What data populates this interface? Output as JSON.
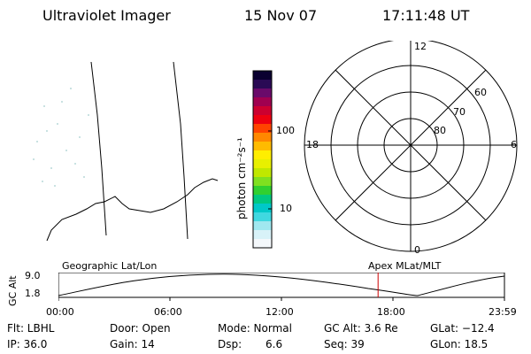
{
  "header": {
    "instrument": "Ultraviolet Imager",
    "date": "15 Nov 07",
    "time": "17:11:48 UT"
  },
  "colorbar": {
    "label": "photon cm⁻²s⁻¹",
    "ticks": [
      "100",
      "10"
    ],
    "colors": [
      "#0a0030",
      "#2a0a55",
      "#6a0a6a",
      "#a00050",
      "#cc0030",
      "#ee0010",
      "#ff4400",
      "#ff8800",
      "#ffbb00",
      "#ffee00",
      "#e8f000",
      "#c0e800",
      "#80e020",
      "#30d030",
      "#00c880",
      "#00c8c8",
      "#40d8e0",
      "#a0e8f0",
      "#d8f2f8",
      "#f4f8fb"
    ]
  },
  "polar": {
    "labels": {
      "top": "12",
      "bottom": "0",
      "left": "18",
      "right": "6"
    },
    "rings": [
      "60",
      "70",
      "80"
    ]
  },
  "timeline": {
    "y_axis_label": "GC Alt",
    "y_max": "9.0",
    "y_min": "1.8",
    "left_label": "Geographic Lat/Lon",
    "right_label": "Apex MLat/MLT",
    "ticks": [
      "00:00",
      "06:00",
      "12:00",
      "18:00",
      "23:59"
    ],
    "marker_time_hours": 17.2
  },
  "info": {
    "flt": "Flt: LBHL",
    "ip": "IP: 36.0",
    "door": "Door: Open",
    "gain": "Gain: 14",
    "mode": "Mode: Normal",
    "dsp_label": "Dsp:",
    "dsp_value": "6.6",
    "gc_alt": "GC Alt: 3.6 Re",
    "seq": "Seq: 39",
    "glat": "GLat: −12.4",
    "glon": "GLon: 18.5"
  }
}
